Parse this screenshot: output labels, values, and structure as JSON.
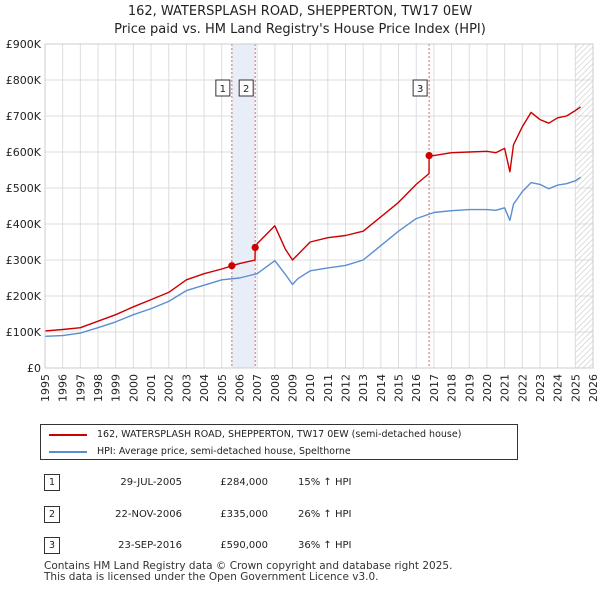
{
  "title_line1": "162, WATERSPLASH ROAD, SHEPPERTON, TW17 0EW",
  "title_line2": "Price paid vs. HM Land Registry's House Price Index (HPI)",
  "colors": {
    "property": "#cc0000",
    "hpi": "#5b8ed0",
    "shade": "#e8eef8",
    "grid": "#dddddd",
    "vline": "#e06666"
  },
  "legend": {
    "property_label": "162, WATERSPLASH ROAD, SHEPPERTON, TW17 0EW (semi-detached house)",
    "hpi_label": "HPI: Average price, semi-detached house, Spelthorne"
  },
  "transactions": [
    {
      "num": "1",
      "date": "29-JUL-2005",
      "price": "£284,000",
      "hpi": "15% ↑ HPI"
    },
    {
      "num": "2",
      "date": "22-NOV-2006",
      "price": "£335,000",
      "hpi": "26% ↑ HPI"
    },
    {
      "num": "3",
      "date": "23-SEP-2016",
      "price": "£590,000",
      "hpi": "36% ↑ HPI"
    }
  ],
  "footer_line1": "Contains HM Land Registry data © Crown copyright and database right 2025.",
  "footer_line2": "This data is licensed under the Open Government Licence v3.0.",
  "chart_data": {
    "type": "line",
    "xlim": [
      1995,
      2026
    ],
    "ylim": [
      0,
      900000
    ],
    "yticks": [
      0,
      100000,
      200000,
      300000,
      400000,
      500000,
      600000,
      700000,
      800000,
      900000
    ],
    "ytick_labels": [
      "£0",
      "£100K",
      "£200K",
      "£300K",
      "£400K",
      "£500K",
      "£600K",
      "£700K",
      "£800K",
      "£900K"
    ],
    "xticks": [
      1995,
      1996,
      1997,
      1998,
      1999,
      2000,
      2001,
      2002,
      2003,
      2004,
      2005,
      2006,
      2007,
      2008,
      2009,
      2010,
      2011,
      2012,
      2013,
      2014,
      2015,
      2016,
      2017,
      2018,
      2019,
      2020,
      2021,
      2022,
      2023,
      2024,
      2025,
      2026
    ],
    "shaded_range": [
      2005.57,
      2006.89
    ],
    "hatched_from": 2025.0,
    "sales": [
      {
        "label": "1",
        "x": 2005.57,
        "y": 284000
      },
      {
        "label": "2",
        "x": 2006.89,
        "y": 335000
      },
      {
        "label": "3",
        "x": 2016.73,
        "y": 590000
      }
    ],
    "series": [
      {
        "name": "162, WATERSPLASH ROAD, SHEPPERTON, TW17 0EW (semi-detached house)",
        "x": [
          1995,
          1996,
          1997,
          1998,
          1999,
          2000,
          2001,
          2002,
          2003,
          2004,
          2005,
          2005.57,
          2006,
          2006.88,
          2006.89,
          2007,
          2007.5,
          2008,
          2008.6,
          2009,
          2009.3,
          2010,
          2011,
          2012,
          2013,
          2014,
          2015,
          2016,
          2016.72,
          2016.73,
          2017,
          2018,
          2019,
          2020,
          2020.5,
          2021,
          2021.3,
          2021.5,
          2022,
          2022.5,
          2023,
          2023.5,
          2024,
          2024.5,
          2025,
          2025.3
        ],
        "y": [
          103000,
          107000,
          112000,
          130000,
          148000,
          170000,
          190000,
          210000,
          245000,
          262000,
          275000,
          284000,
          290000,
          300000,
          335000,
          345000,
          370000,
          395000,
          330000,
          300000,
          315000,
          350000,
          362000,
          368000,
          380000,
          420000,
          460000,
          510000,
          540000,
          590000,
          590000,
          598000,
          600000,
          602000,
          598000,
          610000,
          545000,
          620000,
          670000,
          710000,
          690000,
          680000,
          695000,
          700000,
          715000,
          725000
        ]
      },
      {
        "name": "HPI: Average price, semi-detached house, Spelthorne",
        "x": [
          1995,
          1996,
          1997,
          1998,
          1999,
          2000,
          2001,
          2002,
          2003,
          2004,
          2005,
          2006,
          2007,
          2007.5,
          2008,
          2008.6,
          2009,
          2009.3,
          2010,
          2011,
          2012,
          2013,
          2014,
          2015,
          2016,
          2017,
          2018,
          2019,
          2020,
          2020.5,
          2021,
          2021.3,
          2021.5,
          2022,
          2022.5,
          2023,
          2023.5,
          2024,
          2024.5,
          2025,
          2025.3
        ],
        "y": [
          88000,
          90000,
          97000,
          112000,
          128000,
          148000,
          165000,
          185000,
          215000,
          230000,
          245000,
          250000,
          262000,
          280000,
          298000,
          260000,
          232000,
          248000,
          270000,
          278000,
          285000,
          300000,
          340000,
          380000,
          415000,
          432000,
          437000,
          440000,
          440000,
          438000,
          445000,
          410000,
          455000,
          490000,
          515000,
          510000,
          498000,
          508000,
          512000,
          520000,
          530000
        ]
      }
    ]
  }
}
